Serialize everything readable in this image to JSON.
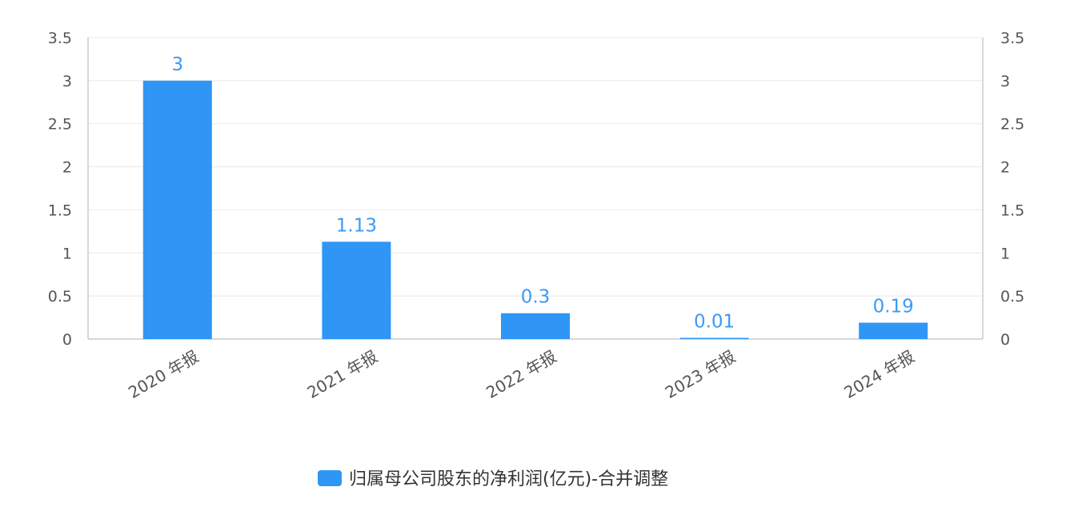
{
  "chart_data": {
    "type": "bar",
    "categories": [
      "2020 年报",
      "2021 年报",
      "2022 年报",
      "2023 年报",
      "2024 年报"
    ],
    "series": [
      {
        "name": "归属母公司股东的净利润(亿元)-合并调整",
        "values": [
          3,
          1.13,
          0.3,
          0.01,
          0.19
        ],
        "labels": [
          "3",
          "1.13",
          "0.3",
          "0.01",
          "0.19"
        ],
        "color": "#2f96f6"
      }
    ],
    "y_ticks": [
      "0",
      "0.5",
      "1",
      "1.5",
      "2",
      "2.5",
      "3",
      "3.5"
    ],
    "ylim": [
      0,
      3.5
    ],
    "dual_y_axis_mirrored": true,
    "grid": true,
    "legend_position": "bottom-center",
    "colors": {
      "bar": "#2f96f6",
      "data_label": "#3a9bf5",
      "grid": "#e8e8e8",
      "axis": "#cccccc"
    }
  }
}
